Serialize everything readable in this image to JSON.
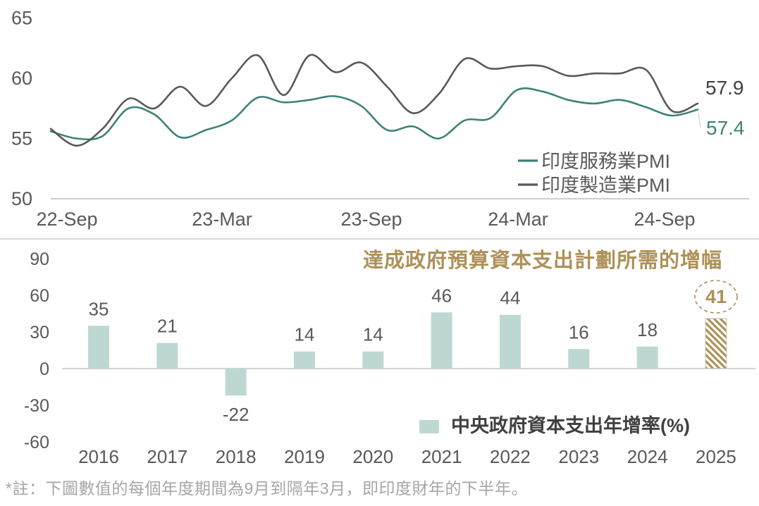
{
  "footer_note": "*註：下圖數值的每個年度期間為9月到隔年3月，即印度財年的下半年。",
  "colors": {
    "teal": "#3c8278",
    "gray": "#595959",
    "bar_fill": "#bdd8d2",
    "gold": "#ad9157",
    "axis_text": "#595959",
    "axis_line": "#bfbfbf",
    "zero_line": "#c6c6c6",
    "divider": "#d9d9d9",
    "label_dark": "#404040",
    "note_gray": "#a6a6a6",
    "highlight_border": "#c4c4c4"
  },
  "chart_data": [
    {
      "type": "line",
      "title": "",
      "x_months": [
        "Sep-22",
        "Oct-22",
        "Nov-22",
        "Dec-22",
        "Jan-23",
        "Feb-23",
        "Mar-23",
        "Apr-23",
        "May-23",
        "Jun-23",
        "Jul-23",
        "Aug-23",
        "Sep-23",
        "Oct-23",
        "Nov-23",
        "Dec-23",
        "Jan-24",
        "Feb-24",
        "Mar-24",
        "Apr-24",
        "May-24",
        "Jun-24",
        "Jul-24",
        "Aug-24",
        "Sep-24",
        "Oct-24"
      ],
      "x_tick_labels": [
        "22-Sep",
        "23-Mar",
        "23-Sep",
        "24-Mar",
        "24-Sep"
      ],
      "y_ticks": [
        65,
        60,
        55,
        50
      ],
      "ylim": [
        50,
        65
      ],
      "grid": false,
      "legend_position": "inside-bottom-right",
      "series": [
        {
          "name": "印度服務業PMI",
          "color": "#3c8278",
          "end_label": "57.4",
          "values": [
            55.6,
            55.0,
            55.2,
            57.5,
            57.0,
            55.1,
            55.7,
            56.5,
            58.4,
            58.0,
            58.2,
            58.5,
            57.7,
            55.7,
            56.0,
            55.0,
            56.5,
            56.7,
            59.0,
            58.9,
            58.2,
            57.9,
            58.2,
            57.6,
            56.9,
            57.4
          ]
        },
        {
          "name": "印度製造業PMI",
          "color": "#595959",
          "end_label": "57.9",
          "values": [
            55.8,
            54.4,
            55.8,
            58.3,
            57.5,
            59.3,
            57.7,
            60.0,
            61.9,
            58.6,
            61.9,
            60.5,
            61.3,
            59.3,
            57.1,
            58.7,
            61.6,
            60.8,
            61.0,
            61.0,
            60.2,
            60.4,
            60.4,
            60.7,
            57.3,
            57.9
          ]
        }
      ]
    },
    {
      "type": "bar",
      "title": "達成政府預算資本支出計劃所需的增幅",
      "legend": "中央政府資本支出年增率(%)",
      "categories": [
        "2016",
        "2017",
        "2018",
        "2019",
        "2020",
        "2021",
        "2022",
        "2023",
        "2024",
        "2025"
      ],
      "values": [
        35,
        21,
        -22,
        14,
        14,
        46,
        44,
        16,
        18,
        41
      ],
      "y_ticks": [
        90,
        60,
        30,
        0,
        -30,
        -60
      ],
      "ylim": [
        -60,
        90
      ],
      "grid": false,
      "highlight_last": {
        "category": "2025",
        "value": 41,
        "style": "gold-diagonal-hatch",
        "label_in_dashed_circle": true
      }
    }
  ]
}
